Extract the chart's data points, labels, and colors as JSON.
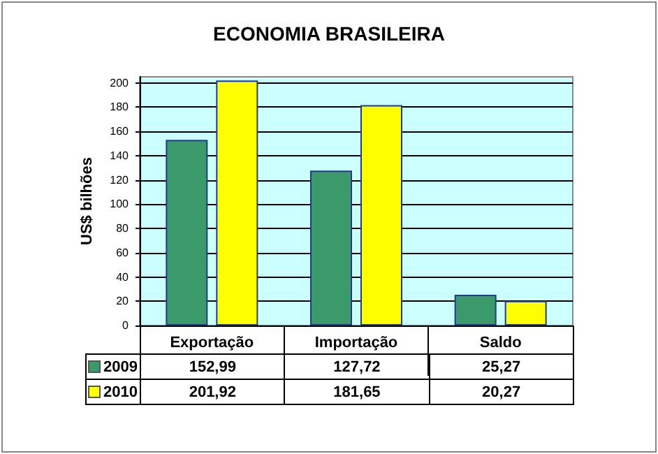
{
  "chart_data": {
    "type": "bar",
    "title": "ECONOMIA BRASILEIRA",
    "ylabel": "US$ bilhões",
    "categories": [
      "Exportação",
      "Importação",
      "Saldo"
    ],
    "series": [
      {
        "name": "2009",
        "color": "#3a9a6a",
        "values": [
          152.99,
          127.72,
          25.27
        ],
        "value_labels": [
          "152,99",
          "127,72",
          "25,27"
        ]
      },
      {
        "name": "2010",
        "color": "#ffff00",
        "values": [
          201.92,
          181.65,
          20.27
        ],
        "value_labels": [
          "201,92",
          "181,65",
          "20,27"
        ]
      }
    ],
    "ylim": [
      0,
      205
    ],
    "yticks": [
      0,
      20,
      40,
      60,
      80,
      100,
      120,
      140,
      160,
      180,
      200
    ],
    "grid": "y",
    "legend": "bottom left"
  }
}
